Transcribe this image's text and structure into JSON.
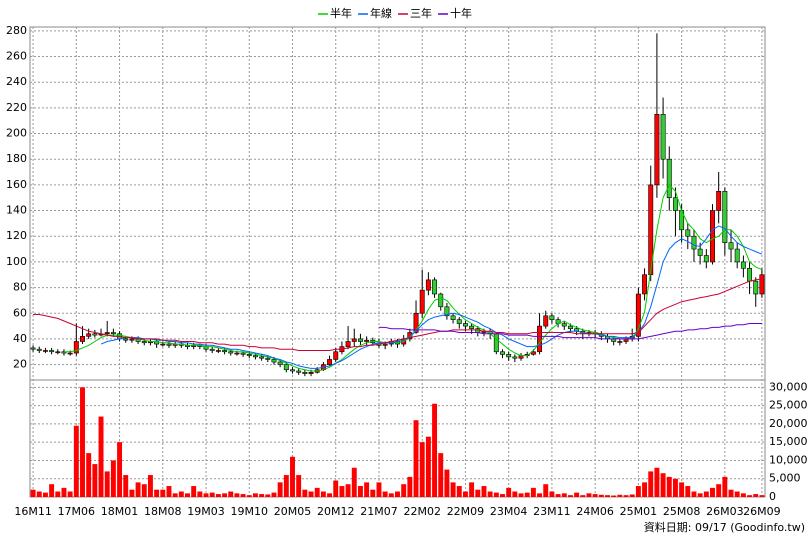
{
  "chart_data": {
    "type": "candlestick",
    "categories": [
      "16M11",
      null,
      null,
      null,
      null,
      null,
      null,
      "17M06",
      null,
      null,
      null,
      null,
      null,
      null,
      "18M01",
      null,
      null,
      null,
      null,
      null,
      null,
      "18M08",
      null,
      null,
      null,
      null,
      null,
      null,
      "19M03",
      null,
      null,
      null,
      null,
      null,
      null,
      "19M10",
      null,
      null,
      null,
      null,
      null,
      null,
      "20M05",
      null,
      null,
      null,
      null,
      null,
      null,
      "20M12",
      null,
      null,
      null,
      null,
      null,
      null,
      "21M07",
      null,
      null,
      null,
      null,
      null,
      null,
      "22M02",
      null,
      null,
      null,
      null,
      null,
      null,
      "22M09",
      null,
      null,
      null,
      null,
      null,
      null,
      "23M04",
      null,
      null,
      null,
      null,
      null,
      null,
      "23M11",
      null,
      null,
      null,
      null,
      null,
      null,
      "24M06",
      null,
      null,
      null,
      null,
      null,
      null,
      "25M01",
      null,
      null,
      null,
      null,
      null,
      null,
      "25M08",
      null,
      null,
      null,
      null,
      null,
      null,
      "26M03",
      null,
      null,
      null,
      null,
      null,
      "26M09"
    ],
    "open": [
      33,
      32,
      31,
      31,
      30,
      30,
      29,
      29,
      38,
      42,
      44,
      43,
      44,
      45,
      44,
      40,
      39,
      40,
      38,
      37,
      38,
      36,
      36,
      35,
      36,
      35,
      34,
      35,
      34,
      32,
      31,
      31,
      30,
      29,
      29,
      28,
      27,
      26,
      25,
      24,
      22,
      20,
      16,
      15,
      14,
      13,
      14,
      16,
      20,
      24,
      30,
      34,
      38,
      40,
      38,
      39,
      37,
      35,
      36,
      38,
      36,
      40,
      45,
      60,
      78,
      86,
      75,
      65,
      58,
      55,
      52,
      50,
      48,
      45,
      46,
      44,
      30,
      28,
      26,
      25,
      27,
      28,
      30,
      50,
      58,
      55,
      52,
      50,
      48,
      46,
      44,
      45,
      44,
      42,
      40,
      38,
      38,
      40,
      42,
      75,
      90,
      160,
      215,
      180,
      150,
      140,
      125,
      120,
      110,
      105,
      100,
      140,
      155,
      115,
      110,
      100,
      95,
      85,
      75
    ],
    "high": [
      35,
      34,
      33,
      33,
      32,
      32,
      31,
      52,
      50,
      48,
      47,
      48,
      54,
      48,
      46,
      42,
      42,
      42,
      40,
      40,
      40,
      38,
      38,
      38,
      38,
      37,
      37,
      36,
      36,
      34,
      33,
      33,
      32,
      31,
      30,
      30,
      29,
      28,
      27,
      26,
      24,
      22,
      18,
      17,
      16,
      16,
      18,
      22,
      27,
      33,
      38,
      50,
      48,
      44,
      42,
      41,
      40,
      38,
      40,
      40,
      43,
      48,
      70,
      94,
      92,
      88,
      76,
      68,
      60,
      57,
      54,
      52,
      50,
      48,
      48,
      45,
      32,
      30,
      28,
      29,
      30,
      32,
      60,
      62,
      60,
      57,
      54,
      52,
      50,
      48,
      47,
      47,
      46,
      44,
      42,
      40,
      42,
      48,
      80,
      95,
      175,
      278,
      228,
      190,
      158,
      145,
      130,
      125,
      115,
      110,
      145,
      170,
      158,
      125,
      115,
      105,
      100,
      88,
      95
    ],
    "low": [
      30,
      29,
      29,
      28,
      28,
      27,
      27,
      27,
      36,
      40,
      41,
      42,
      42,
      42,
      38,
      37,
      37,
      36,
      35,
      35,
      33,
      34,
      33,
      33,
      33,
      32,
      32,
      32,
      30,
      29,
      29,
      28,
      27,
      27,
      26,
      25,
      24,
      23,
      22,
      20,
      18,
      14,
      13,
      12,
      11,
      11,
      13,
      15,
      19,
      22,
      28,
      32,
      34,
      35,
      35,
      35,
      33,
      32,
      34,
      33,
      34,
      38,
      44,
      56,
      74,
      72,
      62,
      55,
      52,
      48,
      46,
      44,
      42,
      42,
      40,
      28,
      25,
      23,
      22,
      23,
      25,
      27,
      28,
      48,
      52,
      49,
      47,
      45,
      43,
      40,
      42,
      41,
      39,
      37,
      35,
      35,
      36,
      38,
      38,
      70,
      85,
      150,
      165,
      140,
      120,
      115,
      110,
      100,
      98,
      95,
      98,
      130,
      105,
      100,
      95,
      88,
      75,
      65,
      72
    ],
    "close": [
      32,
      31,
      31,
      30,
      30,
      29,
      29,
      38,
      42,
      44,
      43,
      44,
      45,
      44,
      40,
      39,
      40,
      38,
      37,
      38,
      36,
      36,
      35,
      36,
      35,
      34,
      35,
      34,
      32,
      31,
      31,
      30,
      29,
      29,
      28,
      27,
      26,
      25,
      24,
      22,
      20,
      16,
      15,
      14,
      13,
      14,
      16,
      20,
      24,
      30,
      34,
      38,
      40,
      38,
      39,
      37,
      35,
      36,
      38,
      36,
      40,
      45,
      60,
      78,
      86,
      75,
      65,
      58,
      55,
      52,
      50,
      48,
      45,
      46,
      44,
      30,
      28,
      26,
      25,
      27,
      28,
      30,
      50,
      58,
      55,
      52,
      50,
      48,
      46,
      44,
      45,
      44,
      42,
      40,
      38,
      38,
      40,
      42,
      75,
      90,
      160,
      215,
      180,
      150,
      140,
      125,
      120,
      110,
      105,
      100,
      140,
      155,
      115,
      110,
      100,
      95,
      85,
      75,
      90
    ],
    "up_color": "#ff0000",
    "down_color": "#33cc33",
    "ylim": [
      8,
      283
    ],
    "yticks": [
      20,
      40,
      60,
      80,
      100,
      120,
      140,
      160,
      180,
      200,
      220,
      240,
      260,
      280
    ],
    "grid": true,
    "legend": "top",
    "series": [
      {
        "name": "半年",
        "color": "#00cc00",
        "values": [
          null,
          null,
          null,
          null,
          null,
          30,
          30,
          31,
          33,
          35,
          38,
          41,
          43,
          43,
          43,
          42,
          41,
          40,
          39,
          38,
          38,
          37,
          37,
          36,
          36,
          35,
          35,
          35,
          34,
          34,
          33,
          32,
          31,
          30,
          30,
          29,
          28,
          27,
          26,
          25,
          23,
          21,
          19,
          17,
          16,
          15,
          15,
          16,
          18,
          21,
          24,
          28,
          32,
          35,
          37,
          38,
          38,
          37,
          37,
          37,
          38,
          41,
          47,
          54,
          63,
          70,
          72,
          70,
          64,
          59,
          55,
          52,
          49,
          47,
          44,
          40,
          36,
          32,
          29,
          27,
          27,
          31,
          37,
          43,
          48,
          52,
          54,
          51,
          49,
          47,
          46,
          45,
          44,
          42,
          41,
          40,
          40,
          41,
          48,
          61,
          93,
          125,
          150,
          160,
          155,
          140,
          130,
          125,
          118,
          115,
          118,
          120,
          125,
          125,
          120,
          112,
          100,
          96,
          94
        ]
      },
      {
        "name": "年線",
        "color": "#0066ff",
        "values": [
          null,
          null,
          null,
          null,
          null,
          null,
          null,
          null,
          null,
          null,
          null,
          36,
          38,
          39,
          40,
          41,
          41,
          41,
          40,
          40,
          39,
          39,
          38,
          38,
          37,
          37,
          36,
          36,
          35,
          35,
          34,
          33,
          32,
          32,
          31,
          30,
          29,
          28,
          27,
          25,
          24,
          22,
          21,
          19,
          18,
          17,
          17,
          18,
          19,
          21,
          23,
          26,
          29,
          32,
          34,
          36,
          37,
          37,
          37,
          38,
          39,
          42,
          46,
          51,
          55,
          57,
          58,
          59,
          60,
          59,
          57,
          55,
          53,
          50,
          48,
          45,
          43,
          40,
          38,
          36,
          34,
          34,
          35,
          37,
          40,
          43,
          45,
          46,
          46,
          45,
          44,
          44,
          43,
          42,
          42,
          41,
          41,
          41,
          45,
          52,
          65,
          82,
          100,
          110,
          115,
          118,
          116,
          113,
          112,
          118,
          125,
          128,
          126,
          120,
          115,
          112,
          110,
          108,
          106
        ]
      },
      {
        "name": "三年",
        "color": "#cc0033",
        "values": [
          59,
          59,
          58,
          57,
          56,
          54,
          52,
          50,
          48,
          46,
          45,
          44,
          43,
          42,
          42,
          41,
          41,
          40,
          40,
          40,
          40,
          39,
          39,
          39,
          38,
          38,
          38,
          37,
          37,
          37,
          36,
          36,
          35,
          35,
          35,
          34,
          34,
          33,
          33,
          33,
          32,
          32,
          32,
          31,
          31,
          31,
          31,
          31,
          31,
          32,
          32,
          33,
          34,
          34,
          35,
          35,
          36,
          37,
          38,
          39,
          40,
          41,
          42,
          43,
          44,
          45,
          46,
          46,
          47,
          47,
          47,
          47,
          47,
          46,
          46,
          45,
          45,
          44,
          44,
          44,
          44,
          45,
          45,
          45,
          45,
          45,
          45,
          45,
          44,
          44,
          44,
          44,
          44,
          44,
          44,
          44,
          44,
          44,
          45,
          50,
          55,
          60,
          63,
          65,
          67,
          69,
          70,
          71,
          72,
          73,
          74,
          75,
          77,
          79,
          81,
          83,
          85,
          86,
          87
        ]
      },
      {
        "name": "十年",
        "color": "#6600cc",
        "values": [
          null,
          null,
          null,
          null,
          null,
          null,
          null,
          null,
          null,
          null,
          null,
          null,
          null,
          null,
          null,
          null,
          null,
          null,
          null,
          null,
          null,
          null,
          null,
          null,
          null,
          null,
          null,
          null,
          null,
          null,
          null,
          null,
          null,
          null,
          null,
          null,
          null,
          null,
          null,
          null,
          null,
          null,
          null,
          null,
          null,
          null,
          null,
          null,
          null,
          null,
          null,
          null,
          null,
          null,
          null,
          null,
          49,
          49,
          48,
          48,
          48,
          47,
          47,
          47,
          47,
          47,
          46,
          46,
          46,
          45,
          45,
          45,
          45,
          44,
          44,
          44,
          44,
          43,
          43,
          43,
          43,
          42,
          42,
          42,
          42,
          42,
          41,
          41,
          41,
          41,
          41,
          41,
          40,
          40,
          40,
          40,
          40,
          40,
          40,
          41,
          42,
          43,
          44,
          45,
          46,
          46,
          47,
          47,
          48,
          48,
          49,
          49,
          50,
          50,
          51,
          51,
          52,
          52,
          52
        ]
      }
    ],
    "volume": {
      "color": "#ff0000",
      "ylim": [
        0,
        32000
      ],
      "yticks": [
        0,
        5000,
        10000,
        15000,
        20000,
        25000,
        30000
      ],
      "ytick_labels": [
        "0",
        "5,000",
        "10,000",
        "15,000",
        "20,000",
        "25,000",
        "30,000"
      ],
      "values": [
        2000,
        1500,
        1200,
        3500,
        1500,
        2500,
        1500,
        19500,
        30000,
        12000,
        9000,
        22000,
        7000,
        10000,
        15000,
        6000,
        2000,
        4000,
        3500,
        6000,
        2000,
        2000,
        3000,
        1000,
        1500,
        1000,
        3000,
        1500,
        1000,
        1200,
        800,
        1000,
        1500,
        1000,
        800,
        500,
        1000,
        800,
        700,
        1200,
        4000,
        6000,
        11000,
        6000,
        2000,
        1500,
        2500,
        1500,
        1000,
        4500,
        3000,
        3500,
        8000,
        3000,
        4000,
        2000,
        4000,
        1500,
        1000,
        1500,
        3500,
        5500,
        21000,
        15000,
        16500,
        25500,
        12000,
        7500,
        4000,
        3000,
        1500,
        4000,
        2000,
        3000,
        1500,
        1200,
        800,
        2500,
        1500,
        1000,
        1200,
        2500,
        1000,
        3500,
        1500,
        800,
        1000,
        500,
        1200,
        500,
        1000,
        800,
        600,
        500,
        400,
        600,
        500,
        700,
        3000,
        4000,
        7000,
        8000,
        6500,
        5500,
        5000,
        4000,
        3000,
        1500,
        1000,
        1500,
        2500,
        3500,
        5500,
        2000,
        1500,
        1000,
        500,
        800,
        500
      ]
    },
    "source": "資料日期: 09/17  (Goodinfo.tw)"
  }
}
